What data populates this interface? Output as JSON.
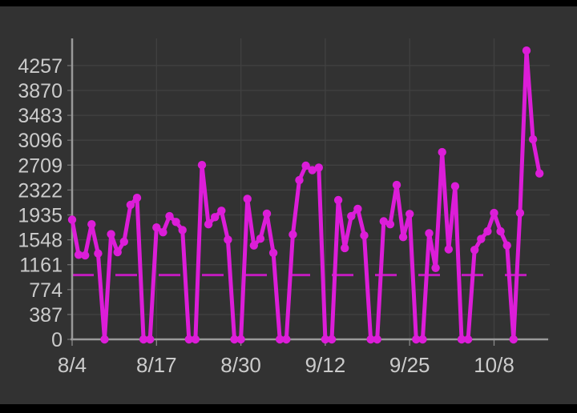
{
  "ui": {
    "background_color": "#323232",
    "letterbox_color": "#000000",
    "axis_color": "#9a9a9a",
    "grid_color": "#414141",
    "label_color": "#cbcbcb"
  },
  "chart_data": {
    "type": "line",
    "title": "",
    "xlabel": "",
    "ylabel": "",
    "legend": "none",
    "grid": true,
    "series_color": "#dc1dd8",
    "x": [
      "8/4",
      "8/5",
      "8/6",
      "8/7",
      "8/8",
      "8/9",
      "8/10",
      "8/11",
      "8/12",
      "8/13",
      "8/14",
      "8/15",
      "8/16",
      "8/17",
      "8/18",
      "8/19",
      "8/20",
      "8/21",
      "8/22",
      "8/23",
      "8/24",
      "8/25",
      "8/26",
      "8/27",
      "8/28",
      "8/29",
      "8/30",
      "8/31",
      "9/1",
      "9/2",
      "9/3",
      "9/4",
      "9/5",
      "9/6",
      "9/7",
      "9/8",
      "9/9",
      "9/10",
      "9/11",
      "9/12",
      "9/13",
      "9/14",
      "9/15",
      "9/16",
      "9/17",
      "9/18",
      "9/19",
      "9/20",
      "9/21",
      "9/22",
      "9/23",
      "9/24",
      "9/25",
      "9/26",
      "9/27",
      "9/28",
      "9/29",
      "9/30",
      "10/1",
      "10/2",
      "10/3",
      "10/4",
      "10/5",
      "10/6",
      "10/7",
      "10/8",
      "10/9",
      "10/10",
      "10/11",
      "10/12",
      "10/13",
      "10/14",
      "10/15"
    ],
    "values": [
      1860,
      1315,
      1305,
      1790,
      1335,
      0,
      1635,
      1355,
      1520,
      2090,
      2200,
      0,
      0,
      1740,
      1665,
      1915,
      1825,
      1700,
      0,
      0,
      2710,
      1790,
      1900,
      2000,
      1550,
      0,
      0,
      2185,
      1460,
      1565,
      1955,
      1345,
      0,
      0,
      1630,
      2475,
      2700,
      2630,
      2670,
      0,
      0,
      2165,
      1420,
      1915,
      2030,
      1615,
      0,
      0,
      1835,
      1790,
      2400,
      1590,
      1950,
      0,
      0,
      1650,
      1110,
      2910,
      1400,
      2380,
      0,
      0,
      1390,
      1560,
      1680,
      1965,
      1680,
      1460,
      0,
      1965,
      4490,
      3110,
      2580
    ],
    "y_ticks": [
      0,
      387,
      774,
      1161,
      1548,
      1935,
      2322,
      2709,
      3096,
      3483,
      3870,
      4257
    ],
    "ylim": [
      0,
      4644
    ],
    "x_tick_labels": [
      "8/4",
      "8/17",
      "8/30",
      "9/12",
      "9/25",
      "10/8"
    ],
    "x_tick_indices": [
      0,
      13,
      26,
      39,
      52,
      65
    ],
    "reference_line": {
      "value": 1000,
      "style": "dashed",
      "color": "#c21cbe"
    }
  }
}
